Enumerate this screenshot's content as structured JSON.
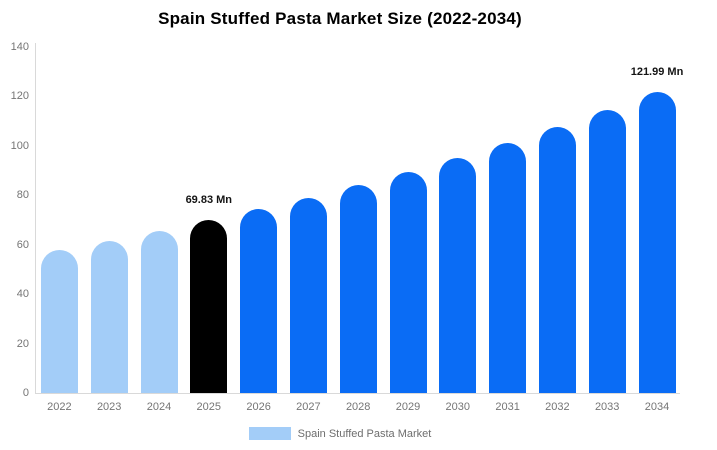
{
  "title": "Spain Stuffed Pasta Market Size (2022-2034)",
  "colors": {
    "light_blue": "#A3CDF8",
    "highlight_black": "#000000",
    "bright_blue": "#0A6CF5",
    "axis_line": "#d9d9d9",
    "tick_text": "#757575",
    "value_label_text": "#141414",
    "legend_text": "#6e6e6e"
  },
  "chart_data": {
    "type": "bar",
    "title": "Spain Stuffed Pasta Market Size (2022-2034)",
    "categories": [
      "2022",
      "2023",
      "2024",
      "2025",
      "2026",
      "2027",
      "2028",
      "2029",
      "2030",
      "2031",
      "2032",
      "2033",
      "2034"
    ],
    "values": [
      58.0,
      61.7,
      65.6,
      69.83,
      74.29,
      79.04,
      84.09,
      89.46,
      95.18,
      101.26,
      107.73,
      114.62,
      121.99
    ],
    "bar_colors": [
      "#A3CDF8",
      "#A3CDF8",
      "#A3CDF8",
      "#000000",
      "#0A6CF5",
      "#0A6CF5",
      "#0A6CF5",
      "#0A6CF5",
      "#0A6CF5",
      "#0A6CF5",
      "#0A6CF5",
      "#0A6CF5",
      "#0A6CF5"
    ],
    "annotations": [
      {
        "category": "2025",
        "label": "69.83 Mn"
      },
      {
        "category": "2034",
        "label": "121.99 Mn"
      }
    ],
    "xlabel": "",
    "ylabel": "",
    "ylim": [
      0,
      140
    ],
    "yticks": [
      0,
      20,
      40,
      60,
      80,
      100,
      120,
      140
    ],
    "grid": false,
    "legend_position": "bottom",
    "series_name": "Spain Stuffed Pasta Market"
  },
  "legend": {
    "label": "Spain Stuffed Pasta Market",
    "swatch_color": "#A3CDF8"
  }
}
